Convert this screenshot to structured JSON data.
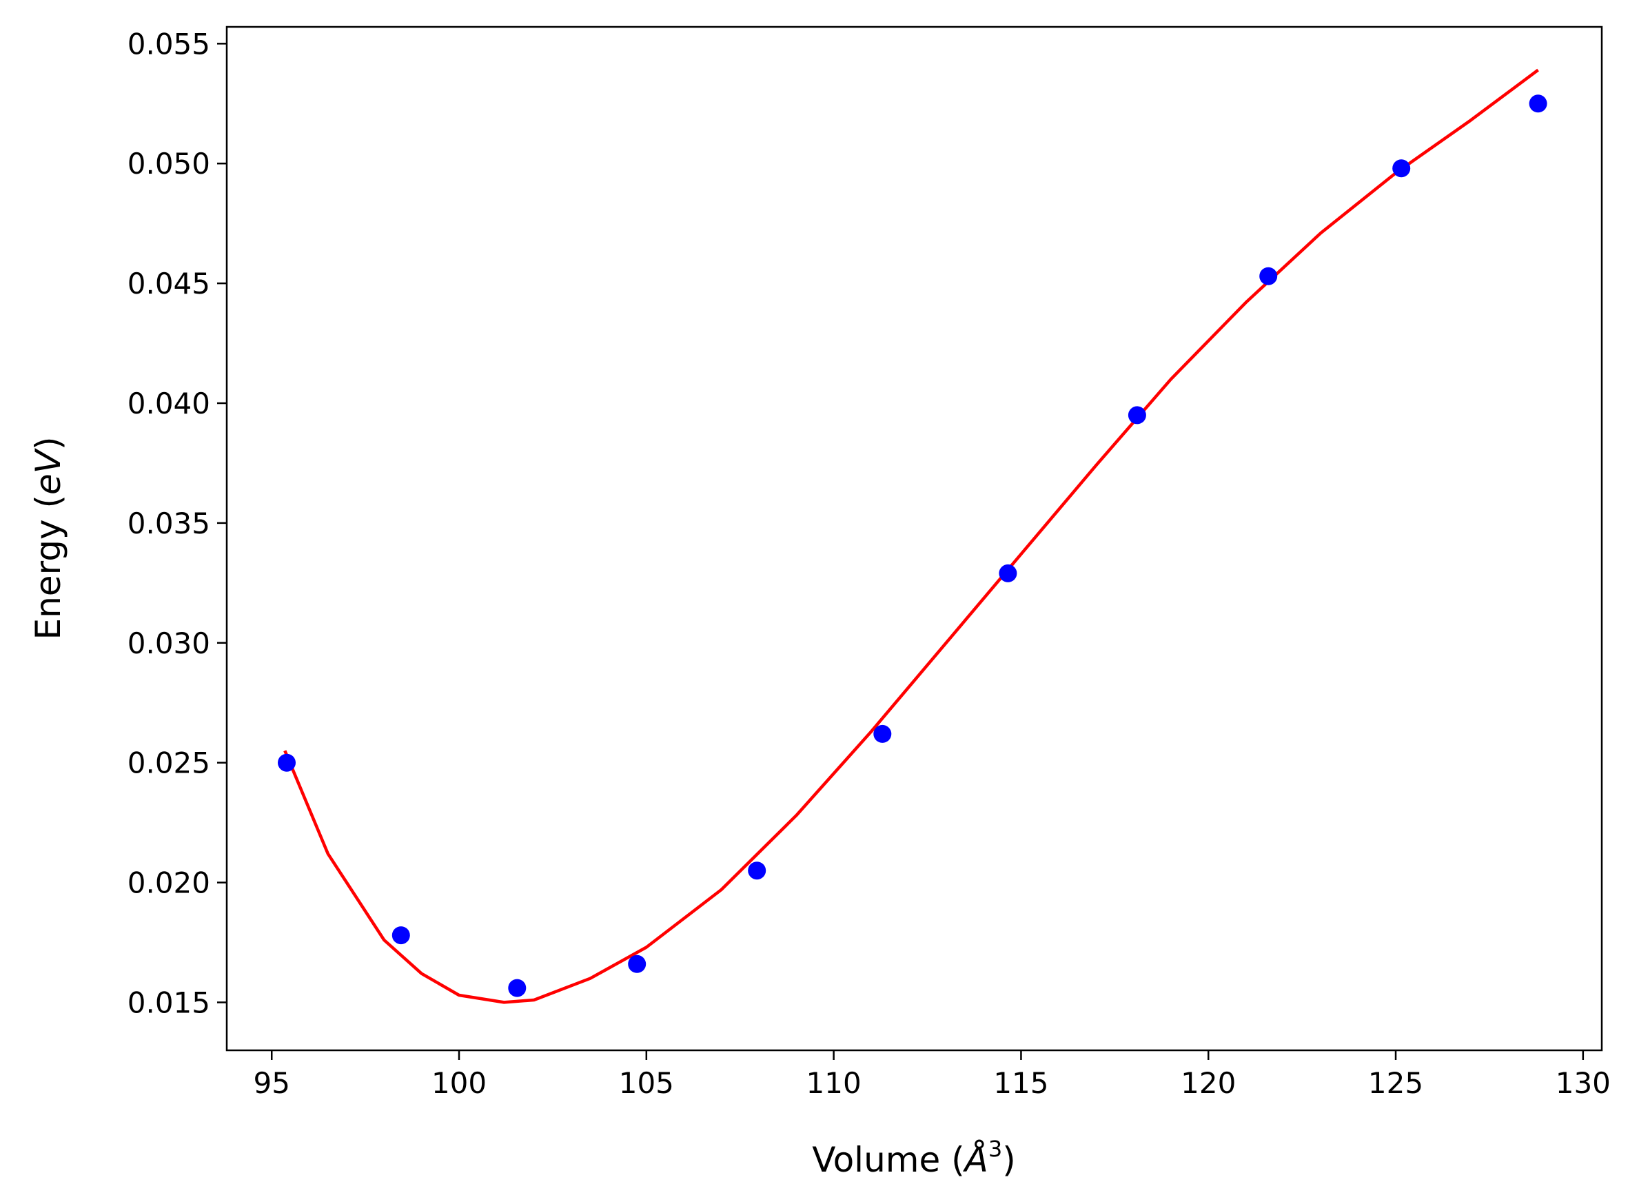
{
  "chart_data": {
    "type": "scatter",
    "title": "",
    "xlabel": "Volume (",
    "xlabel_symbol": "Å",
    "xlabel_sup": "3",
    "xlabel_close": ")",
    "ylabel": "Energy (",
    "ylabel_unit": "eV",
    "ylabel_close": ")",
    "xlim": [
      93.8,
      130.5
    ],
    "ylim": [
      0.013,
      0.0557
    ],
    "xticks": [
      95,
      100,
      105,
      110,
      115,
      120,
      125,
      130
    ],
    "xtick_labels": [
      "95",
      "100",
      "105",
      "110",
      "115",
      "120",
      "125",
      "130"
    ],
    "yticks": [
      0.015,
      0.02,
      0.025,
      0.03,
      0.035,
      0.04,
      0.045,
      0.05,
      0.055
    ],
    "ytick_labels": [
      "0.015",
      "0.020",
      "0.025",
      "0.030",
      "0.035",
      "0.040",
      "0.045",
      "0.050",
      "0.055"
    ],
    "grid": false,
    "series": [
      {
        "kind": "scatter",
        "color": "#0000ff",
        "x": [
          95.4,
          98.45,
          101.55,
          104.75,
          107.95,
          111.3,
          114.65,
          118.1,
          121.6,
          125.15,
          128.8
        ],
        "y": [
          0.025,
          0.0178,
          0.0156,
          0.0166,
          0.0205,
          0.0262,
          0.0329,
          0.0395,
          0.0453,
          0.0498,
          0.0525
        ]
      },
      {
        "kind": "line",
        "color": "#ff0000",
        "x": [
          95.35,
          96.5,
          98.0,
          99.0,
          100.0,
          101.2,
          102.0,
          103.5,
          105.0,
          107.0,
          109.0,
          111.0,
          113.0,
          115.0,
          117.0,
          119.0,
          121.0,
          123.0,
          125.0,
          127.0,
          128.8
        ],
        "y": [
          0.0255,
          0.0212,
          0.0176,
          0.0162,
          0.0153,
          0.015,
          0.0151,
          0.016,
          0.0173,
          0.0197,
          0.0228,
          0.0263,
          0.03,
          0.0337,
          0.0374,
          0.041,
          0.0442,
          0.0471,
          0.0496,
          0.0518,
          0.0539
        ]
      }
    ]
  }
}
